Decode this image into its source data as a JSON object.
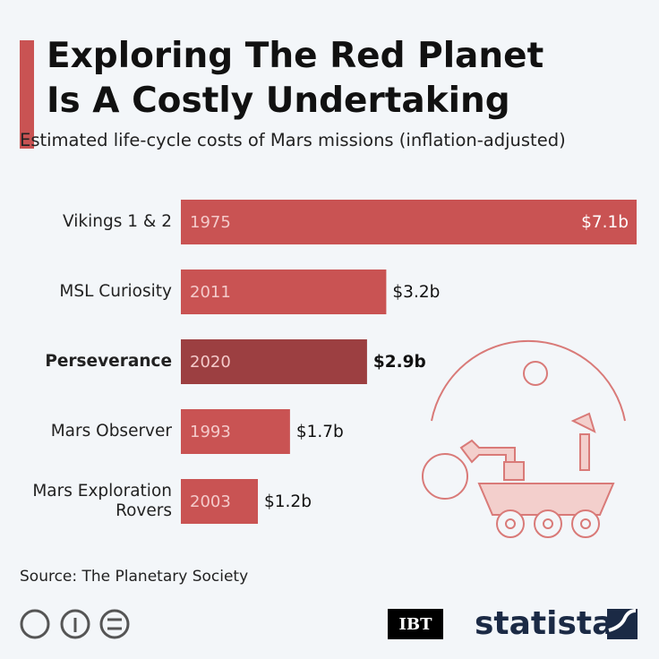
{
  "chart_data": {
    "type": "bar",
    "orientation": "horizontal",
    "title": "Exploring The Red Planet Is A Costly Undertaking",
    "subtitle": "Estimated life-cycle costs of Mars missions (inflation-adjusted)",
    "categories": [
      "Vikings 1 & 2",
      "MSL Curiosity",
      "Perseverance",
      "Mars Observer",
      "Mars Exploration Rovers"
    ],
    "years": [
      "1975",
      "2011",
      "2020",
      "1993",
      "2003"
    ],
    "values": [
      7.1,
      3.2,
      2.9,
      1.7,
      1.2
    ],
    "value_labels": [
      "$7.1b",
      "$3.2b",
      "$2.9b",
      "$1.7b",
      "$1.2b"
    ],
    "colors": [
      "#c95353",
      "#c95353",
      "#9c3f41",
      "#c95353",
      "#c95353"
    ],
    "highlight_color": "#9c3f41",
    "source": "Source: The Planetary Society",
    "partner": "IBT",
    "brand": "statista"
  }
}
